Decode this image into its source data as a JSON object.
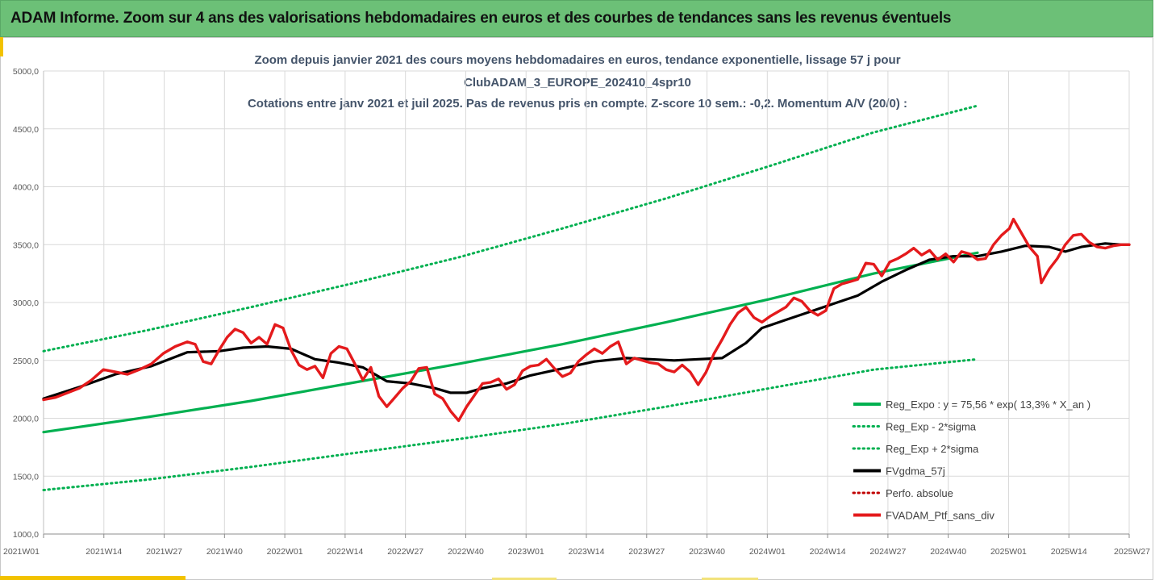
{
  "banner": {
    "title": "ADAM Informe. Zoom sur 4 ans des valorisations hebdomadaires en euros et des courbes de tendances sans les revenus éventuels"
  },
  "colors": {
    "banner_bg": "#6cc077",
    "title_text": "#44546a",
    "reg_expo": "#00b050",
    "fvgdma": "#000000",
    "perfo_absolue": "#c00000",
    "fvadam": "#e41a1c",
    "accent": "#f2c200"
  },
  "chart_data": {
    "type": "line",
    "title_lines": [
      "Zoom depuis janvier 2021 des cours moyens hebdomadaires  en euros, tendance exponentielle, lissage 57 j pour",
      "ClubADAM_3_EUROPE_202410_4spr10",
      "Cotations entre janv 2021 et juil 2025. Pas de revenus pris en compte. Z-score 10 sem.: -0,2. Momentum A/V (20/0) :"
    ],
    "xlabel": "",
    "ylabel": "",
    "ylim": [
      1000,
      5000
    ],
    "y_ticks": [
      "1000,0",
      "1500,0",
      "2000,0",
      "2500,0",
      "3000,0",
      "3500,0",
      "4000,0",
      "4500,0",
      "5000,0"
    ],
    "x_ticks": [
      "2021W01",
      "2021W14",
      "2021W27",
      "2021W40",
      "2022W01",
      "2022W14",
      "2022W27",
      "2022W40",
      "2023W01",
      "2023W14",
      "2023W27",
      "2023W40",
      "2024W01",
      "2024W14",
      "2024W27",
      "2024W40",
      "2025W01",
      "2025W14",
      "2025W27"
    ],
    "grid": true,
    "legend_position": "bottom-right",
    "series": [
      {
        "name": "Reg_Expo : y = 75,56 * exp( 13,3% *  X_an )",
        "style": "solid",
        "color": "#00b050",
        "points": [
          [
            0,
            1880
          ],
          [
            26,
            2010
          ],
          [
            52,
            2150
          ],
          [
            78,
            2310
          ],
          [
            104,
            2470
          ],
          [
            130,
            2640
          ],
          [
            156,
            2830
          ],
          [
            182,
            3030
          ],
          [
            208,
            3250
          ],
          [
            234,
            3430
          ]
        ]
      },
      {
        "name": "Reg_Exp - 2*sigma",
        "style": "dotted",
        "color": "#00b050",
        "points": [
          [
            0,
            1380
          ],
          [
            26,
            1470
          ],
          [
            52,
            1580
          ],
          [
            78,
            1700
          ],
          [
            104,
            1820
          ],
          [
            130,
            1950
          ],
          [
            156,
            2100
          ],
          [
            182,
            2260
          ],
          [
            208,
            2420
          ],
          [
            234,
            2510
          ]
        ]
      },
      {
        "name": "Reg_Exp + 2*sigma",
        "style": "dotted",
        "color": "#00b050",
        "points": [
          [
            0,
            2580
          ],
          [
            26,
            2760
          ],
          [
            52,
            2960
          ],
          [
            78,
            3170
          ],
          [
            104,
            3390
          ],
          [
            130,
            3640
          ],
          [
            156,
            3900
          ],
          [
            182,
            4180
          ],
          [
            208,
            4470
          ],
          [
            234,
            4700
          ]
        ]
      },
      {
        "name": "FVgdma_57j",
        "style": "solid",
        "color": "#000000",
        "points": [
          [
            0,
            2170
          ],
          [
            9,
            2270
          ],
          [
            18,
            2380
          ],
          [
            27,
            2450
          ],
          [
            36,
            2570
          ],
          [
            44,
            2580
          ],
          [
            50,
            2610
          ],
          [
            56,
            2620
          ],
          [
            62,
            2600
          ],
          [
            68,
            2510
          ],
          [
            74,
            2480
          ],
          [
            80,
            2440
          ],
          [
            86,
            2320
          ],
          [
            92,
            2300
          ],
          [
            98,
            2260
          ],
          [
            102,
            2220
          ],
          [
            106,
            2220
          ],
          [
            110,
            2260
          ],
          [
            116,
            2300
          ],
          [
            122,
            2370
          ],
          [
            130,
            2430
          ],
          [
            138,
            2490
          ],
          [
            146,
            2520
          ],
          [
            152,
            2510
          ],
          [
            158,
            2500
          ],
          [
            164,
            2510
          ],
          [
            170,
            2520
          ],
          [
            176,
            2650
          ],
          [
            180,
            2780
          ],
          [
            186,
            2850
          ],
          [
            192,
            2920
          ],
          [
            198,
            2990
          ],
          [
            204,
            3060
          ],
          [
            210,
            3180
          ],
          [
            216,
            3280
          ],
          [
            222,
            3370
          ],
          [
            228,
            3400
          ],
          [
            234,
            3400
          ],
          [
            240,
            3440
          ],
          [
            246,
            3490
          ],
          [
            252,
            3480
          ],
          [
            256,
            3440
          ],
          [
            260,
            3480
          ],
          [
            266,
            3510
          ],
          [
            270,
            3500
          ],
          [
            272,
            3500
          ]
        ]
      },
      {
        "name": "Perfo. absolue",
        "style": "dotted",
        "color": "#c00000",
        "points": []
      },
      {
        "name": "FVADAM_Ptf_sans_div",
        "style": "solid",
        "color": "#e41a1c",
        "points": [
          [
            0,
            2160
          ],
          [
            3,
            2180
          ],
          [
            6,
            2220
          ],
          [
            9,
            2260
          ],
          [
            12,
            2330
          ],
          [
            15,
            2420
          ],
          [
            18,
            2400
          ],
          [
            21,
            2380
          ],
          [
            24,
            2420
          ],
          [
            27,
            2470
          ],
          [
            30,
            2560
          ],
          [
            33,
            2620
          ],
          [
            36,
            2660
          ],
          [
            38,
            2640
          ],
          [
            40,
            2490
          ],
          [
            42,
            2470
          ],
          [
            44,
            2590
          ],
          [
            46,
            2700
          ],
          [
            48,
            2770
          ],
          [
            50,
            2740
          ],
          [
            52,
            2650
          ],
          [
            54,
            2700
          ],
          [
            56,
            2640
          ],
          [
            58,
            2810
          ],
          [
            60,
            2780
          ],
          [
            62,
            2590
          ],
          [
            64,
            2460
          ],
          [
            66,
            2420
          ],
          [
            68,
            2450
          ],
          [
            70,
            2350
          ],
          [
            72,
            2560
          ],
          [
            74,
            2620
          ],
          [
            76,
            2600
          ],
          [
            78,
            2470
          ],
          [
            80,
            2330
          ],
          [
            82,
            2440
          ],
          [
            84,
            2190
          ],
          [
            86,
            2100
          ],
          [
            88,
            2180
          ],
          [
            90,
            2260
          ],
          [
            92,
            2320
          ],
          [
            94,
            2430
          ],
          [
            96,
            2440
          ],
          [
            98,
            2210
          ],
          [
            100,
            2170
          ],
          [
            102,
            2060
          ],
          [
            104,
            1980
          ],
          [
            106,
            2100
          ],
          [
            108,
            2200
          ],
          [
            110,
            2300
          ],
          [
            112,
            2310
          ],
          [
            114,
            2340
          ],
          [
            116,
            2250
          ],
          [
            118,
            2290
          ],
          [
            120,
            2410
          ],
          [
            122,
            2450
          ],
          [
            124,
            2460
          ],
          [
            126,
            2510
          ],
          [
            128,
            2430
          ],
          [
            130,
            2360
          ],
          [
            132,
            2390
          ],
          [
            134,
            2490
          ],
          [
            136,
            2550
          ],
          [
            138,
            2600
          ],
          [
            140,
            2560
          ],
          [
            142,
            2620
          ],
          [
            144,
            2660
          ],
          [
            146,
            2470
          ],
          [
            148,
            2520
          ],
          [
            150,
            2500
          ],
          [
            152,
            2480
          ],
          [
            154,
            2470
          ],
          [
            156,
            2420
          ],
          [
            158,
            2400
          ],
          [
            160,
            2460
          ],
          [
            162,
            2400
          ],
          [
            164,
            2290
          ],
          [
            166,
            2400
          ],
          [
            168,
            2560
          ],
          [
            170,
            2680
          ],
          [
            172,
            2810
          ],
          [
            174,
            2910
          ],
          [
            176,
            2960
          ],
          [
            178,
            2870
          ],
          [
            180,
            2830
          ],
          [
            182,
            2880
          ],
          [
            184,
            2920
          ],
          [
            186,
            2960
          ],
          [
            188,
            3040
          ],
          [
            190,
            3010
          ],
          [
            192,
            2930
          ],
          [
            194,
            2890
          ],
          [
            196,
            2930
          ],
          [
            198,
            3120
          ],
          [
            200,
            3160
          ],
          [
            202,
            3180
          ],
          [
            204,
            3200
          ],
          [
            206,
            3340
          ],
          [
            208,
            3330
          ],
          [
            210,
            3230
          ],
          [
            212,
            3350
          ],
          [
            214,
            3380
          ],
          [
            216,
            3420
          ],
          [
            218,
            3470
          ],
          [
            220,
            3410
          ],
          [
            222,
            3450
          ],
          [
            224,
            3370
          ],
          [
            226,
            3420
          ],
          [
            228,
            3350
          ],
          [
            230,
            3440
          ],
          [
            232,
            3420
          ],
          [
            234,
            3370
          ],
          [
            236,
            3380
          ],
          [
            238,
            3500
          ],
          [
            240,
            3580
          ],
          [
            242,
            3640
          ],
          [
            243,
            3720
          ],
          [
            245,
            3600
          ],
          [
            247,
            3480
          ],
          [
            249,
            3400
          ],
          [
            250,
            3170
          ],
          [
            252,
            3290
          ],
          [
            254,
            3380
          ],
          [
            256,
            3500
          ],
          [
            258,
            3580
          ],
          [
            260,
            3590
          ],
          [
            262,
            3520
          ],
          [
            264,
            3480
          ],
          [
            266,
            3470
          ],
          [
            268,
            3490
          ],
          [
            270,
            3500
          ],
          [
            272,
            3500
          ]
        ]
      }
    ]
  }
}
